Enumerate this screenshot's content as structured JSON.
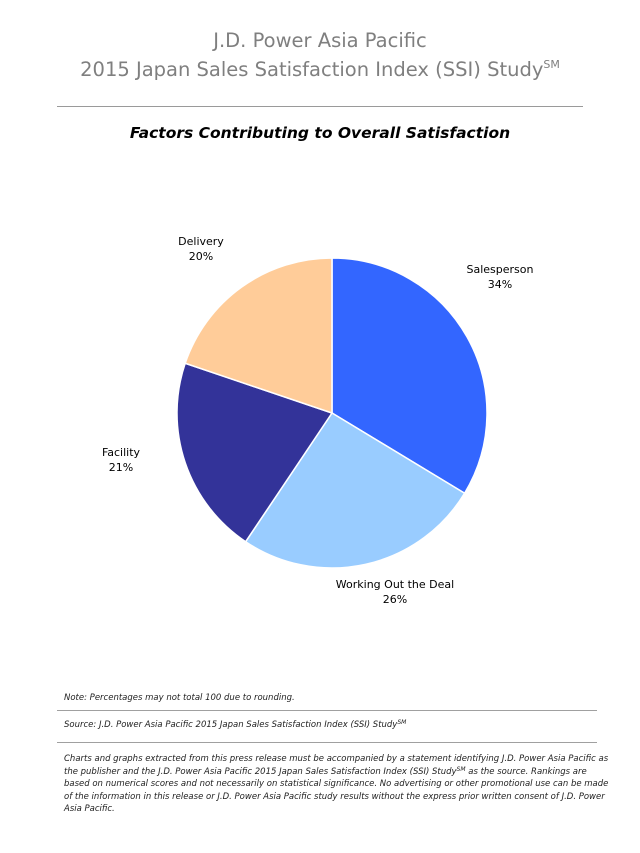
{
  "header": {
    "line1": "J.D. Power Asia Pacific",
    "line2": "2015 Japan Sales Satisfaction Index (SSI) Study",
    "line2_sup": "SM"
  },
  "chart_data": {
    "type": "pie",
    "title": "Factors Contributing to Overall Satisfaction",
    "slices": [
      {
        "label": "Salesperson",
        "value": 34,
        "value_label": "34%",
        "color": "#3366ff"
      },
      {
        "label": "Working Out the Deal",
        "value": 26,
        "value_label": "26%",
        "color": "#99ccff"
      },
      {
        "label": "Facility",
        "value": 21,
        "value_label": "21%",
        "color": "#333399"
      },
      {
        "label": "Delivery",
        "value": 20,
        "value_label": "20%",
        "color": "#ffcc99"
      }
    ],
    "start": "12 o'clock",
    "direction": "clockwise"
  },
  "note": "Note: Percentages may not total 100 due to rounding.",
  "source": {
    "text": "Source: J.D. Power Asia Pacific 2015 Japan Sales Satisfaction Index (SSI) Study",
    "sup": "SM"
  },
  "disclaimer": {
    "part1": "Charts and graphs extracted from this press release must be accompanied by a statement identifying J.D. Power Asia Pacific as the publisher and the J.D. Power Asia Pacific 2015 Japan Sales Satisfaction Index (SSI) Study",
    "sup": "SM",
    "part2": " as the source. Rankings are based on numerical scores and not necessarily on statistical significance. No advertising or other promotional use can be made of the information in this release or J.D. Power Asia Pacific study results without the express prior written consent of J.D. Power Asia Pacific."
  }
}
